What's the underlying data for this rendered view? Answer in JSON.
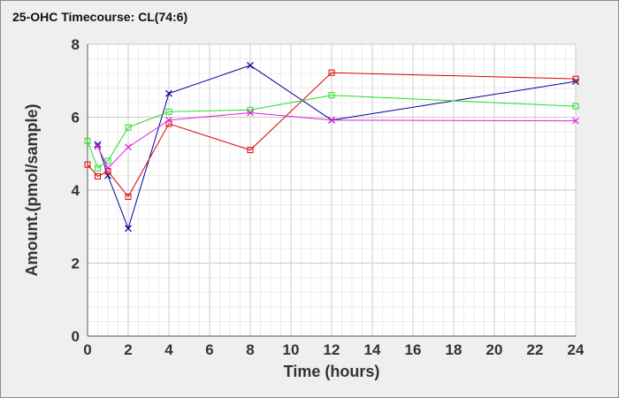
{
  "chart_data": {
    "type": "line",
    "title": "25-OHC Timecourse: CL(74:6)",
    "xlabel": "Time (hours)",
    "ylabel": "Amount.(pmol/sample)",
    "xlim": [
      0,
      24
    ],
    "ylim": [
      0,
      8
    ],
    "xticks": [
      "0",
      "2",
      "4",
      "6",
      "8",
      "10",
      "12",
      "14",
      "16",
      "18",
      "20",
      "22",
      "24"
    ],
    "yticks": [
      "0",
      "2",
      "4",
      "6",
      "8"
    ],
    "grid": true,
    "legend": "none",
    "series": [
      {
        "color": "#000099",
        "marker": "x",
        "points": [
          [
            0.5,
            5.25
          ],
          [
            1,
            4.4
          ],
          [
            2,
            2.95
          ],
          [
            4,
            6.65
          ],
          [
            8,
            7.42
          ],
          [
            12,
            5.92
          ],
          [
            24,
            6.98
          ]
        ]
      },
      {
        "color": "#dd0000",
        "marker": "square",
        "points": [
          [
            0,
            4.7
          ],
          [
            0.5,
            4.38
          ],
          [
            1,
            4.52
          ],
          [
            2,
            3.82
          ],
          [
            4,
            5.82
          ],
          [
            8,
            5.1
          ],
          [
            12,
            7.22
          ],
          [
            24,
            7.05
          ]
        ]
      },
      {
        "color": "#22dd22",
        "marker": "square",
        "points": [
          [
            0,
            5.35
          ],
          [
            0.5,
            4.6
          ],
          [
            1,
            4.8
          ],
          [
            2,
            5.72
          ],
          [
            4,
            6.15
          ],
          [
            8,
            6.2
          ],
          [
            12,
            6.6
          ],
          [
            24,
            6.3
          ]
        ]
      },
      {
        "color": "#dd22dd",
        "marker": "x",
        "points": [
          [
            0.5,
            5.2
          ],
          [
            1,
            4.6
          ],
          [
            2,
            5.18
          ],
          [
            4,
            5.92
          ],
          [
            8,
            6.12
          ],
          [
            12,
            5.92
          ],
          [
            24,
            5.9
          ]
        ]
      }
    ]
  }
}
